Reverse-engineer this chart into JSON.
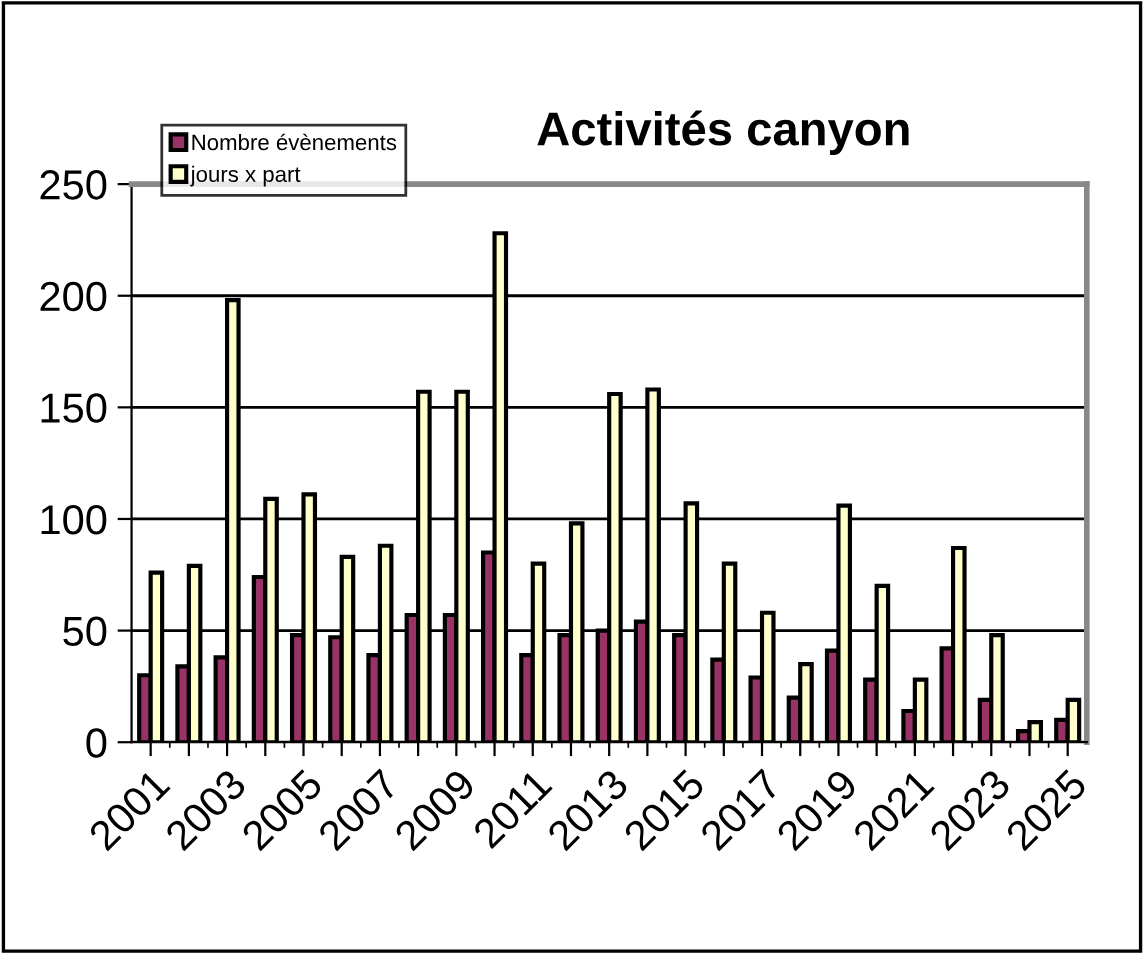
{
  "chart_data": {
    "type": "bar",
    "title": "Activités canyon",
    "categories": [
      "2001",
      null,
      "2003",
      null,
      "2005",
      null,
      "2007",
      null,
      "2009",
      null,
      "2011",
      null,
      "2013",
      null,
      "2015",
      null,
      "2017",
      null,
      "2019",
      null,
      "2021",
      null,
      "2023",
      null,
      "2025"
    ],
    "series": [
      {
        "name": "Nombre évènements",
        "color": "#993366",
        "values": [
          30,
          34,
          38,
          74,
          48,
          47,
          39,
          57,
          57,
          85,
          39,
          48,
          50,
          54,
          48,
          37,
          29,
          20,
          41,
          28,
          14,
          42,
          19,
          5,
          10
        ]
      },
      {
        "name": "jours x part",
        "color": "#ffffcc",
        "values": [
          76,
          79,
          198,
          109,
          111,
          83,
          88,
          157,
          157,
          228,
          80,
          98,
          156,
          158,
          107,
          80,
          58,
          35,
          106,
          70,
          28,
          87,
          48,
          9,
          19
        ]
      }
    ],
    "ylim": [
      0,
      250
    ],
    "yticks": [
      0,
      50,
      100,
      150,
      200,
      250
    ],
    "grid": "y",
    "legend": "top left"
  }
}
